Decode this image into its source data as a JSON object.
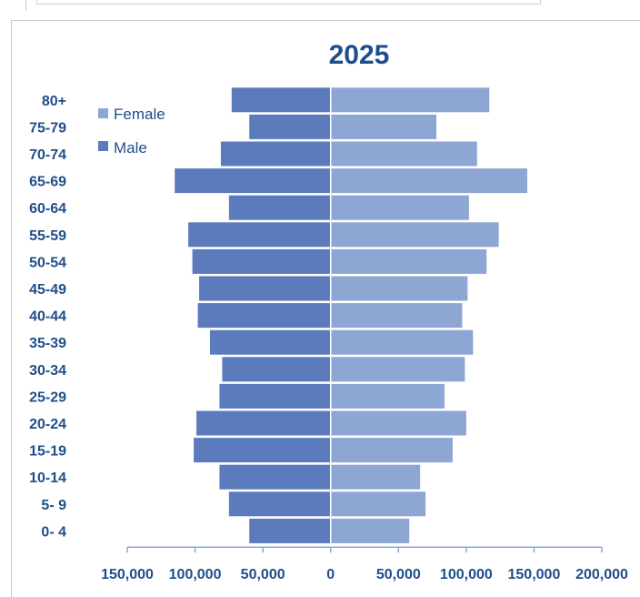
{
  "chart_data": {
    "type": "bar",
    "orientation": "horizontal",
    "layout": "population-pyramid",
    "title": "2025",
    "categories": [
      "0- 4",
      "5- 9",
      "10-14",
      "15-19",
      "20-24",
      "25-29",
      "30-34",
      "35-39",
      "40-44",
      "45-49",
      "50-54",
      "55-59",
      "60-64",
      "65-69",
      "70-74",
      "75-79",
      "80+"
    ],
    "series": [
      {
        "name": "Female",
        "color": "#8ea6d3",
        "values": [
          58000,
          70000,
          66000,
          90000,
          100000,
          84000,
          99000,
          105000,
          97000,
          101000,
          115000,
          124000,
          102000,
          145000,
          108000,
          78000,
          117000
        ]
      },
      {
        "name": "Male",
        "color": "#5b7bbd",
        "values": [
          -60000,
          -75000,
          -82000,
          -101000,
          -99000,
          -82000,
          -80000,
          -89000,
          -98000,
          -97000,
          -102000,
          -105000,
          -75000,
          -115000,
          -81000,
          -60000,
          -73000
        ]
      }
    ],
    "xlim": [
      -150000,
      200000
    ],
    "xticks": [
      -150000,
      -100000,
      -50000,
      0,
      50000,
      100000,
      150000,
      200000
    ],
    "xtick_labels": [
      "150,000",
      "100,000",
      "50,000",
      "0",
      "50,000",
      "100,000",
      "150,000",
      "200,000"
    ],
    "xlabel": "",
    "ylabel": "",
    "legend": [
      "Female",
      "Male"
    ],
    "legend_position": "top-left",
    "grid": false,
    "axis_color": "#8ea6d3",
    "text_color": "#1f4e8c"
  }
}
